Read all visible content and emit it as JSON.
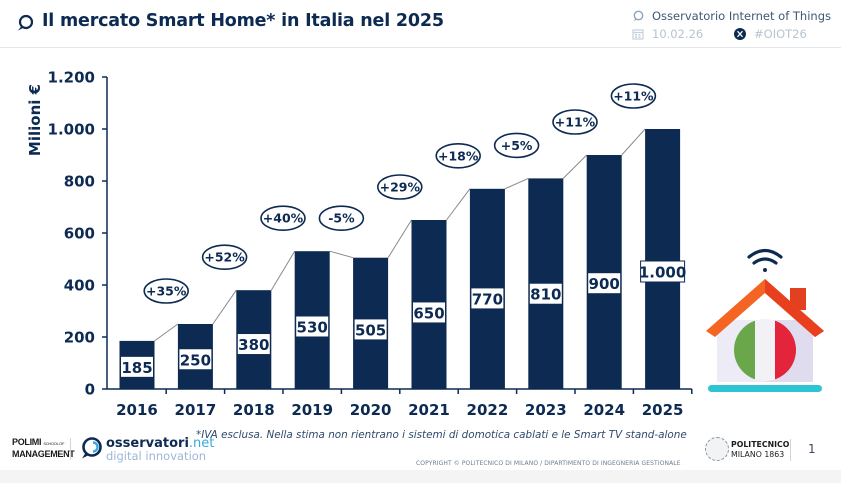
{
  "header": {
    "title": "Il mercato Smart Home* in Italia nel 2025",
    "title_icon": "speech-bubble-icon",
    "org": "Osservatorio Internet of Things",
    "date": "10.02.26",
    "hashtag": "#OIOT26",
    "org_icon": "speech-bubble-icon",
    "date_icon": "calendar-icon",
    "social_icon": "x-twitter-icon"
  },
  "colors": {
    "bar": "#0c2a52",
    "axis": "#0c2a52",
    "text": "#0c2a52",
    "connector": "#8a8a8a",
    "roof": "#f25c22",
    "flag_green": "#6aa74a",
    "flag_white": "#f1f1f6",
    "flag_red": "#e3243b",
    "floor": "#2ec4d4"
  },
  "chart_data": {
    "type": "bar",
    "title": "Il mercato Smart Home* in Italia nel 2025",
    "xlabel": "",
    "ylabel": "Milioni €",
    "ylim": [
      0,
      1200
    ],
    "yticks": [
      0,
      200,
      400,
      600,
      800,
      1000,
      1200
    ],
    "ytick_labels": [
      "0",
      "200",
      "400",
      "600",
      "800",
      "1.000",
      "1.200"
    ],
    "grid": false,
    "categories": [
      "2016",
      "2017",
      "2018",
      "2019",
      "2020",
      "2021",
      "2022",
      "2023",
      "2024",
      "2025"
    ],
    "values": [
      185,
      250,
      380,
      530,
      505,
      650,
      770,
      810,
      900,
      1000
    ],
    "value_labels": [
      "185",
      "250",
      "380",
      "530",
      "505",
      "650",
      "770",
      "810",
      "900",
      "1.000"
    ],
    "growth_labels": [
      "+35%",
      "+52%",
      "+40%",
      "-5%",
      "+29%",
      "+18%",
      "+5%",
      "+11%",
      "+11%"
    ],
    "legend": "none"
  },
  "illustration": {
    "icon": "smart-home-italy-icon",
    "wifi_icon": "wifi-icon"
  },
  "footer": {
    "footnote": "*IVA esclusa. Nella stima non rientrano i sistemi di domotica cablati e le Smart TV stand-alone",
    "copyright": "COPYRIGHT © POLITECNICO DI MILANO / DIPARTIMENTO DI INGEGNERIA GESTIONALE",
    "polimi_line1": "POLIMI",
    "polimi_small": "SCHOOL OF",
    "polimi_line2": "MANAGEMENT",
    "osservatori_main": "osservatori",
    "osservatori_net": ".net",
    "osservatori_sub": "digital innovation",
    "politecnico_line1": "POLITECNICO",
    "politecnico_line2": "MILANO 1863",
    "page_number": "1"
  }
}
